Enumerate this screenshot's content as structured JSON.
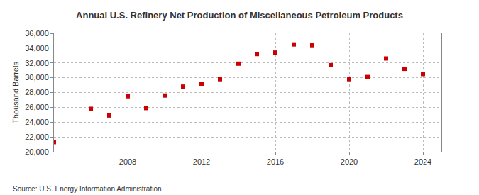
{
  "chart_data": {
    "type": "scatter",
    "title": "Annual U.S. Refinery Net Production of Miscellaneous Petroleum Products",
    "y_label": "Thousand Barrels",
    "annotations": [
      "Source: U.S. Energy Information Administration"
    ],
    "x": [
      2004,
      2006,
      2007,
      2008,
      2009,
      2010,
      2011,
      2012,
      2013,
      2014,
      2015,
      2016,
      2017,
      2018,
      2019,
      2020,
      2021,
      2022,
      2023,
      2024
    ],
    "values": [
      21300,
      25800,
      24900,
      27500,
      25900,
      27600,
      28800,
      29200,
      29800,
      31900,
      33200,
      33400,
      34500,
      34400,
      31700,
      29800,
      30100,
      32600,
      31200,
      30500
    ],
    "color": "#cc0000",
    "marker": "square",
    "xlim": [
      2004,
      2025
    ],
    "xticks": [
      2008,
      2012,
      2016,
      2020,
      2024
    ],
    "ylim": [
      20000,
      36000
    ],
    "yticks": [
      {
        "value": 20000,
        "label": "20,000"
      },
      {
        "value": 22000,
        "label": "22,000"
      },
      {
        "value": 24000,
        "label": "24,000"
      },
      {
        "value": 26000,
        "label": "26,000"
      },
      {
        "value": 28000,
        "label": "28,000"
      },
      {
        "value": 30000,
        "label": "30,000"
      },
      {
        "value": 32000,
        "label": "32,000"
      },
      {
        "value": 34000,
        "label": "34,000"
      },
      {
        "value": 36000,
        "label": "36,000"
      }
    ],
    "grid": true
  }
}
